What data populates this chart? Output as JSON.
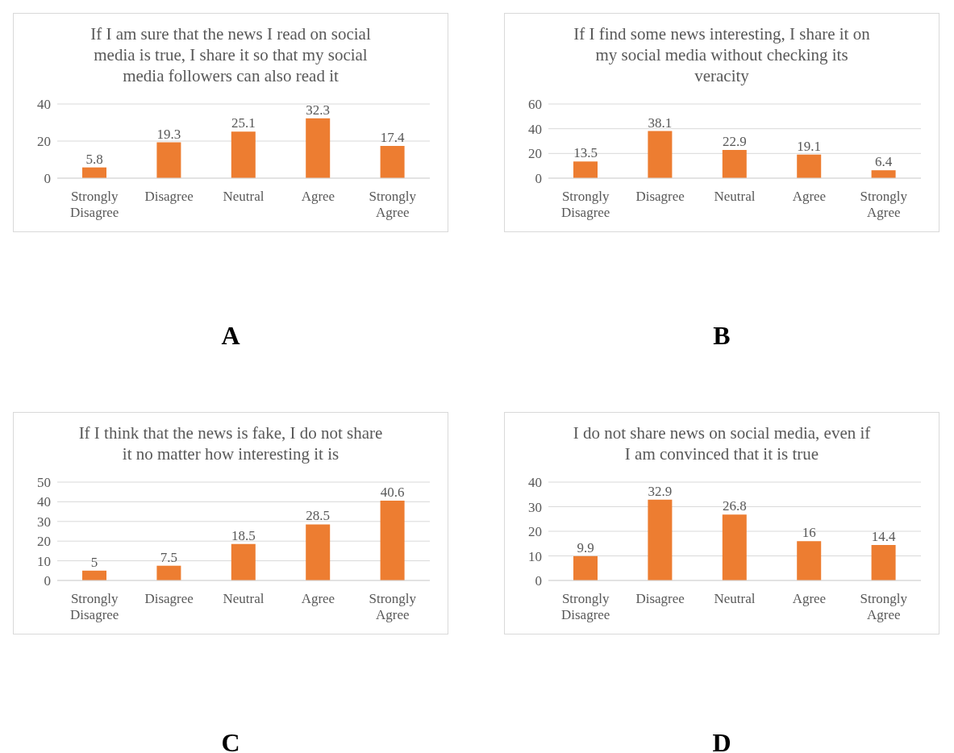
{
  "chart_data": [
    {
      "type": "bar",
      "title": "If I am sure that the news I read on social media is true, I share it so that my social media followers can also read it",
      "categories": [
        "Strongly Disagree",
        "Disagree",
        "Neutral",
        "Agree",
        "Strongly Agree"
      ],
      "values": [
        5.8,
        19.3,
        25.1,
        32.3,
        17.4
      ],
      "color": "#ed7d31",
      "ylim": [
        0,
        40
      ],
      "yticks": [
        0,
        20,
        40
      ],
      "grid": "y",
      "data_labels": true,
      "annotations": [
        "A"
      ]
    },
    {
      "type": "bar",
      "title": "If I find some news interesting, I share it on my social media without checking its veracity",
      "categories": [
        "Strongly Disagree",
        "Disagree",
        "Neutral",
        "Agree",
        "Strongly Agree"
      ],
      "values": [
        13.5,
        38.1,
        22.9,
        19.1,
        6.4
      ],
      "color": "#ed7d31",
      "ylim": [
        0,
        60
      ],
      "yticks": [
        0,
        20,
        40,
        60
      ],
      "grid": "y",
      "data_labels": true,
      "annotations": [
        "B"
      ]
    },
    {
      "type": "bar",
      "title": "If I think that the news is fake, I do not share it no matter how interesting it is",
      "categories": [
        "Strongly Disagree",
        "Disagree",
        "Neutral",
        "Agree",
        "Strongly Agree"
      ],
      "values": [
        5,
        7.5,
        18.5,
        28.5,
        40.6
      ],
      "color": "#ed7d31",
      "ylim": [
        0,
        50
      ],
      "yticks": [
        0,
        10,
        20,
        30,
        40,
        50
      ],
      "grid": "y",
      "data_labels": true,
      "annotations": [
        "C"
      ]
    },
    {
      "type": "bar",
      "title": "I do not share news on social media, even if I am convinced that it is true",
      "categories": [
        "Strongly Disagree",
        "Disagree",
        "Neutral",
        "Agree",
        "Strongly Agree"
      ],
      "values": [
        9.9,
        32.9,
        26.8,
        16,
        14.4
      ],
      "color": "#ed7d31",
      "ylim": [
        0,
        40
      ],
      "yticks": [
        0,
        10,
        20,
        30,
        40
      ],
      "grid": "y",
      "data_labels": true,
      "annotations": [
        "D"
      ]
    }
  ]
}
